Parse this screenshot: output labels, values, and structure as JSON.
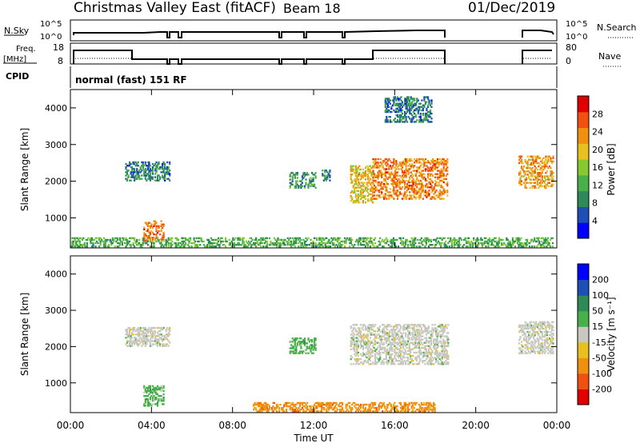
{
  "header": {
    "station": "Christmas Valley East (fitACF)",
    "beam": "Beam 18",
    "date": "01/Dec/2019"
  },
  "nsky_panel": {
    "left_label": "N.Sky",
    "left_ticks": [
      "10^5",
      "10^0"
    ],
    "right_ticks": [
      "10^5",
      "10^0"
    ],
    "right_label": "N.Search"
  },
  "freq_panel": {
    "left_label_1": "Freq.",
    "left_label_2": "[MHz]",
    "left_ticks": [
      "18",
      "8"
    ],
    "right_ticks": [
      "80",
      "0"
    ],
    "right_label": "Nave"
  },
  "cpid_panel": {
    "label": "CPID",
    "mode": "normal (fast) 151 RF"
  },
  "colors": {
    "power_scale": [
      "#0000ff",
      "#1e4fb4",
      "#2e8a58",
      "#48b048",
      "#88c830",
      "#e8c020",
      "#f09010",
      "#f05010",
      "#e00000"
    ],
    "velocity_scale": [
      "#e00000",
      "#f05010",
      "#f09010",
      "#e8c020",
      "#c8c8c0",
      "#48b048",
      "#2e8a58",
      "#1e4fb4",
      "#0000ff"
    ]
  },
  "chart_data": [
    {
      "type": "heatmap",
      "name": "power",
      "ylabel": "Slant Range [km]",
      "ylim": [
        180,
        4500
      ],
      "yticks": [
        "1000",
        "2000",
        "3000",
        "4000"
      ],
      "ytick_values": [
        1000,
        2000,
        3000,
        4000
      ],
      "xlim": [
        0,
        24
      ],
      "colorbar": {
        "label": "Power [dB]",
        "range": [
          0,
          32
        ],
        "ticks": [
          "4",
          "8",
          "12",
          "16",
          "20",
          "24",
          "28"
        ],
        "tick_values": [
          4,
          8,
          12,
          16,
          20,
          24,
          28
        ]
      },
      "echo_regions": [
        {
          "t": [
            2.7,
            4.9
          ],
          "r": [
            2000,
            2500
          ],
          "level": 8
        },
        {
          "t": [
            10.8,
            12.1
          ],
          "r": [
            1800,
            2250
          ],
          "level": 10
        },
        {
          "t": [
            12.4,
            12.8
          ],
          "r": [
            2000,
            2300
          ],
          "level": 9
        },
        {
          "t": [
            13.8,
            14.9
          ],
          "r": [
            1400,
            2400
          ],
          "level": 20
        },
        {
          "t": [
            14.9,
            18.6
          ],
          "r": [
            1500,
            2600
          ],
          "level": 24
        },
        {
          "t": [
            15.5,
            17.8
          ],
          "r": [
            3600,
            4300
          ],
          "level": 8
        },
        {
          "t": [
            22.1,
            23.8
          ],
          "r": [
            1800,
            2700
          ],
          "level": 22
        },
        {
          "t": [
            0,
            23.8
          ],
          "r": [
            200,
            450
          ],
          "level": 12
        },
        {
          "t": [
            3.6,
            4.6
          ],
          "r": [
            350,
            900
          ],
          "level": 24
        }
      ]
    },
    {
      "type": "heatmap",
      "name": "velocity",
      "ylabel": "Slant Range [km]",
      "ylim": [
        180,
        4500
      ],
      "yticks": [
        "1000",
        "2000",
        "3000",
        "4000"
      ],
      "ytick_values": [
        1000,
        2000,
        3000,
        4000
      ],
      "xlim": [
        0,
        24
      ],
      "xticks": [
        "00:00",
        "04:00",
        "08:00",
        "12:00",
        "16:00",
        "20:00",
        "00:00"
      ],
      "xtick_values": [
        0,
        4,
        8,
        12,
        16,
        20,
        24
      ],
      "xlabel": "Time UT",
      "colorbar": {
        "label": "Velocity [m s⁻¹]",
        "ticks": [
          "200",
          "100",
          "50",
          "15",
          "-15",
          "-50",
          "-100",
          "-200"
        ]
      },
      "echo_regions": [
        {
          "t": [
            2.7,
            4.9
          ],
          "r": [
            2000,
            2500
          ],
          "level": "15"
        },
        {
          "t": [
            10.8,
            12.1
          ],
          "r": [
            1800,
            2250
          ],
          "level": "50"
        },
        {
          "t": [
            13.8,
            18.6
          ],
          "r": [
            1500,
            2600
          ],
          "level": "15"
        },
        {
          "t": [
            22.1,
            23.8
          ],
          "r": [
            1800,
            2700
          ],
          "level": "15"
        },
        {
          "t": [
            3.6,
            4.6
          ],
          "r": [
            350,
            900
          ],
          "level": "50"
        },
        {
          "t": [
            9,
            18
          ],
          "r": [
            200,
            450
          ],
          "level": "-50"
        }
      ]
    }
  ]
}
